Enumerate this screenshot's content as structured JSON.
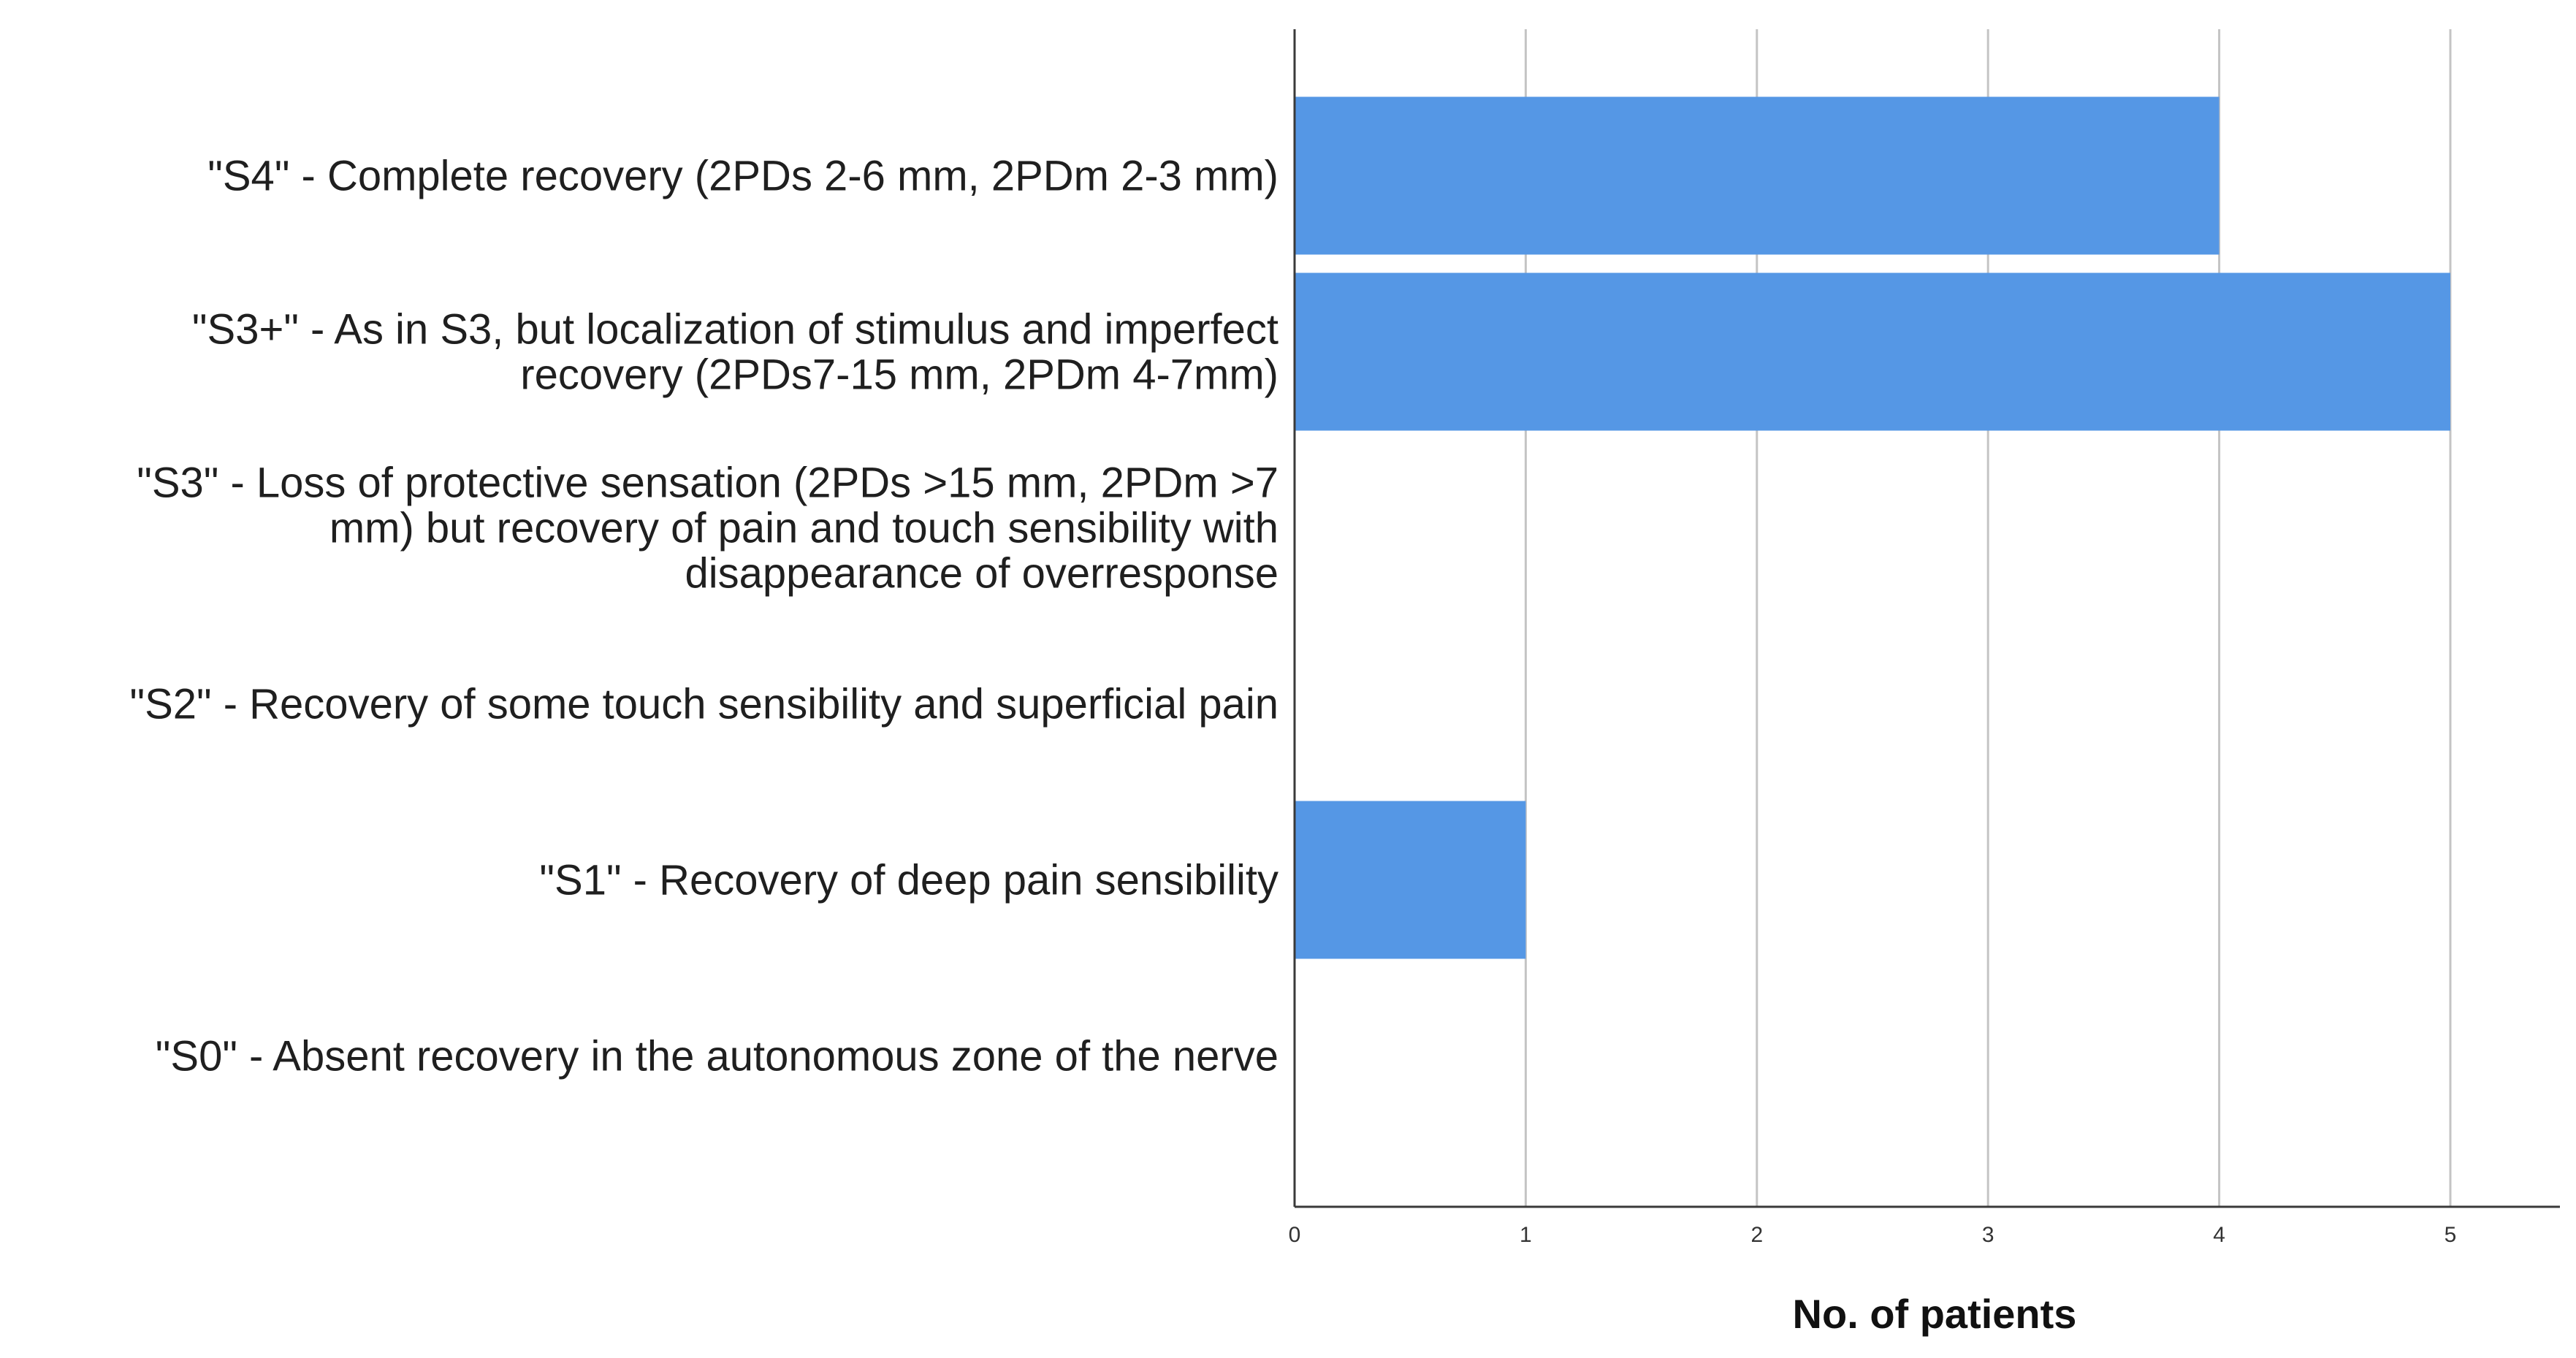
{
  "chart_data": {
    "type": "bar",
    "orientation": "horizontal",
    "categories": [
      [
        "\"S4\" - Complete recovery (2PDs 2-6 mm, 2PDm 2-3 mm)"
      ],
      [
        "\"S3+\" - As in S3, but localization of stimulus and imperfect",
        "recovery (2PDs7-15 mm, 2PDm 4-7mm)"
      ],
      [
        "\"S3\" - Loss of protective sensation (2PDs >15 mm, 2PDm >7",
        "mm) but recovery of pain and touch sensibility with",
        "disappearance of overresponse"
      ],
      [
        "\"S2\" - Recovery of some touch sensibility and superficial pain"
      ],
      [
        "\"S1\" - Recovery of deep pain sensibility"
      ],
      [
        "\"S0\" - Absent recovery in the autonomous zone of the nerve"
      ]
    ],
    "values": [
      4,
      5,
      0,
      0,
      1,
      0
    ],
    "xlim": [
      0,
      5.5
    ],
    "xticks": [
      "0",
      "1",
      "2",
      "3",
      "4",
      "5"
    ],
    "xlabel": "No. of patients",
    "ylabel": "",
    "title": "",
    "grid": "vertical",
    "legend": "none",
    "bar_color": "#5597e5"
  }
}
